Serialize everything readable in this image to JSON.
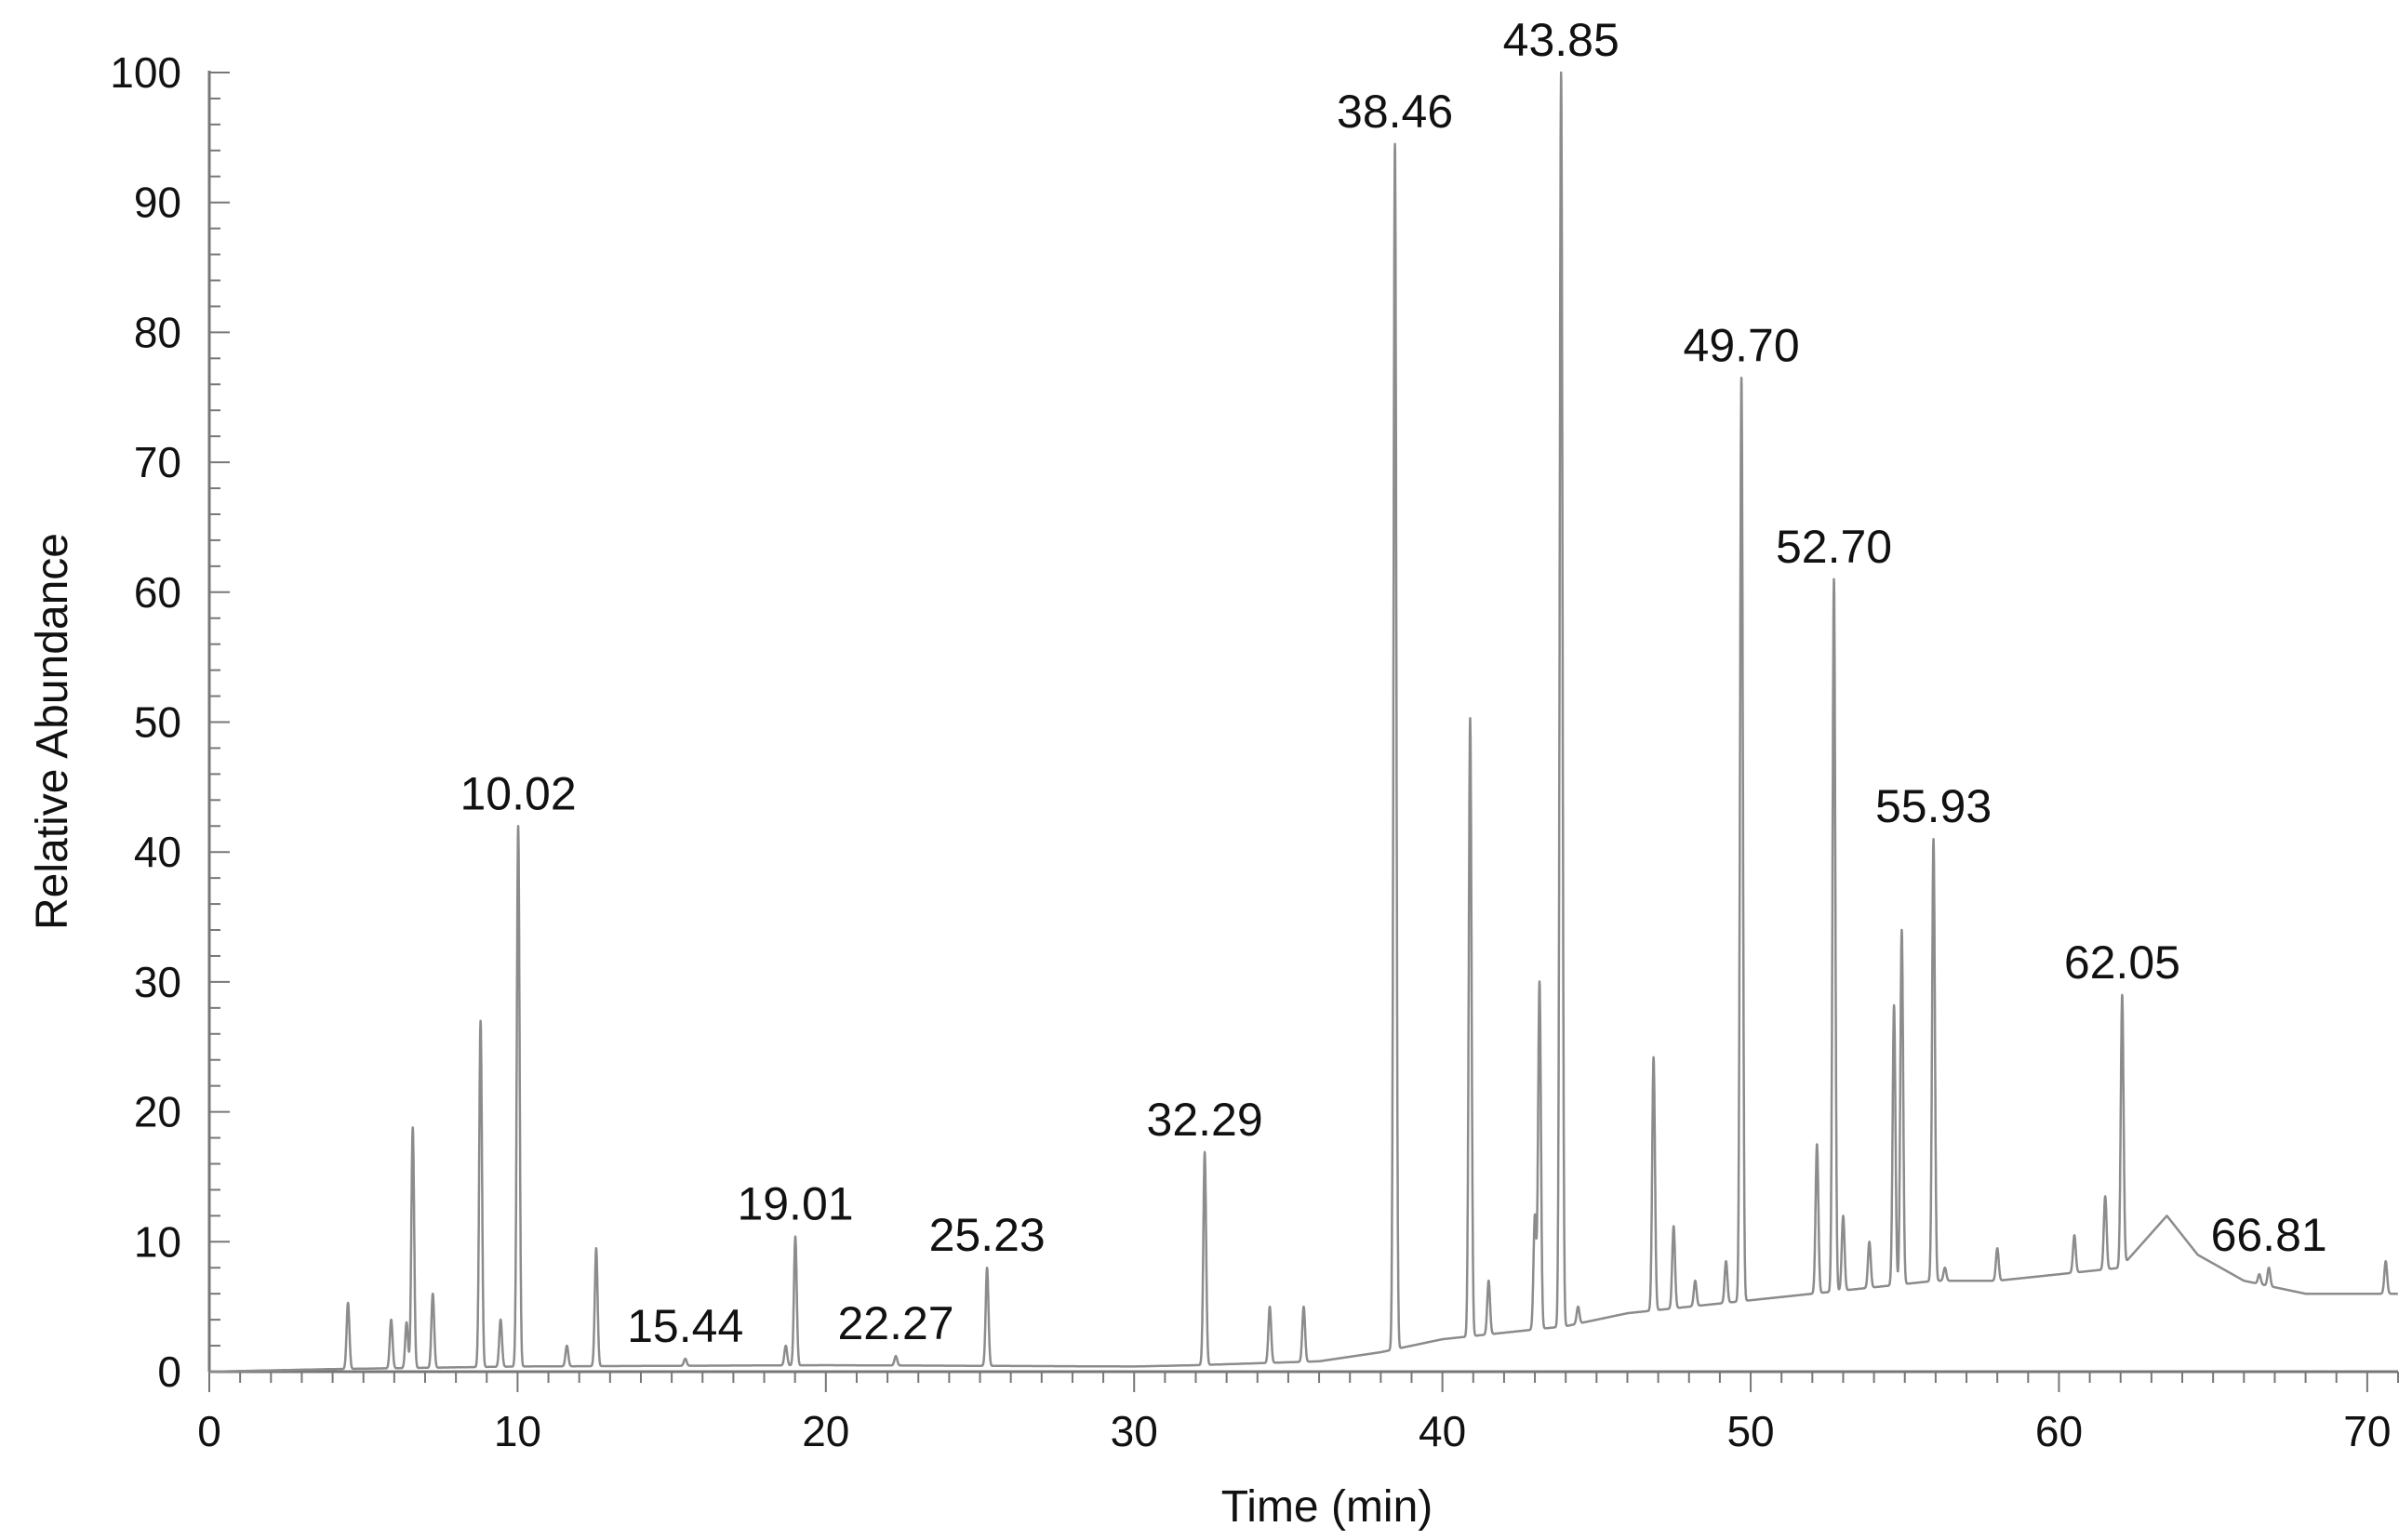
{
  "chart_data": {
    "type": "line",
    "title": "",
    "xlabel": "Time (min)",
    "ylabel": "Relative Abundance",
    "xlim": [
      0,
      71
    ],
    "ylim": [
      0,
      100
    ],
    "x_ticks": [
      0,
      10,
      20,
      30,
      40,
      50,
      60,
      70
    ],
    "y_ticks": [
      0,
      10,
      20,
      30,
      40,
      50,
      60,
      70,
      80,
      90,
      100
    ],
    "grid": false,
    "legend": "none",
    "line_color": "#8c8c8c",
    "baseline": [
      [
        0,
        0
      ],
      [
        4,
        0.2
      ],
      [
        10,
        0.4
      ],
      [
        20,
        0.5
      ],
      [
        30,
        0.4
      ],
      [
        32,
        0.5
      ],
      [
        36,
        0.8
      ],
      [
        38,
        1.5
      ],
      [
        40,
        2.5
      ],
      [
        42,
        3
      ],
      [
        44,
        3.5
      ],
      [
        46,
        4.5
      ],
      [
        48,
        5
      ],
      [
        50,
        5.5
      ],
      [
        52,
        6
      ],
      [
        54,
        6.5
      ],
      [
        56,
        7
      ],
      [
        58,
        7
      ],
      [
        60,
        7.5
      ],
      [
        62,
        8
      ],
      [
        63.5,
        12
      ],
      [
        64.5,
        9
      ],
      [
        66,
        7
      ],
      [
        68,
        6
      ],
      [
        70,
        6
      ],
      [
        71,
        6
      ]
    ],
    "peaks": [
      {
        "x": 4.5,
        "y": 5.3
      },
      {
        "x": 5.9,
        "y": 4
      },
      {
        "x": 6.4,
        "y": 3.8
      },
      {
        "x": 6.6,
        "y": 18.8
      },
      {
        "x": 7.25,
        "y": 6
      },
      {
        "x": 8.8,
        "y": 27
      },
      {
        "x": 9.45,
        "y": 4
      },
      {
        "x": 10.02,
        "y": 42
      },
      {
        "x": 11.6,
        "y": 2
      },
      {
        "x": 12.55,
        "y": 9.5
      },
      {
        "x": 15.44,
        "y": 1
      },
      {
        "x": 18.7,
        "y": 2
      },
      {
        "x": 19.01,
        "y": 10.4
      },
      {
        "x": 22.27,
        "y": 1.2
      },
      {
        "x": 25.23,
        "y": 8
      },
      {
        "x": 32.29,
        "y": 16.9
      },
      {
        "x": 34.4,
        "y": 5
      },
      {
        "x": 35.5,
        "y": 5
      },
      {
        "x": 38.46,
        "y": 94.5
      },
      {
        "x": 40.9,
        "y": 50.3
      },
      {
        "x": 41.5,
        "y": 7
      },
      {
        "x": 43.0,
        "y": 12
      },
      {
        "x": 43.15,
        "y": 30
      },
      {
        "x": 43.85,
        "y": 100
      },
      {
        "x": 44.4,
        "y": 5
      },
      {
        "x": 46.85,
        "y": 24.2
      },
      {
        "x": 47.5,
        "y": 11.2
      },
      {
        "x": 48.2,
        "y": 7
      },
      {
        "x": 49.2,
        "y": 8.5
      },
      {
        "x": 49.7,
        "y": 76.5
      },
      {
        "x": 52.15,
        "y": 17.5
      },
      {
        "x": 52.7,
        "y": 61
      },
      {
        "x": 53.0,
        "y": 12
      },
      {
        "x": 53.85,
        "y": 10
      },
      {
        "x": 54.65,
        "y": 28.2
      },
      {
        "x": 54.9,
        "y": 34
      },
      {
        "x": 55.93,
        "y": 41
      },
      {
        "x": 56.3,
        "y": 8
      },
      {
        "x": 58.0,
        "y": 9.5
      },
      {
        "x": 60.5,
        "y": 10.5
      },
      {
        "x": 61.5,
        "y": 13.5
      },
      {
        "x": 62.05,
        "y": 29
      },
      {
        "x": 66.5,
        "y": 7.5
      },
      {
        "x": 66.81,
        "y": 8
      },
      {
        "x": 70.6,
        "y": 8.5
      }
    ],
    "annotations": [
      {
        "text": "10.02",
        "x": 10.02,
        "y": 42
      },
      {
        "text": "15.44",
        "x": 15.44,
        "y": 1
      },
      {
        "text": "19.01",
        "x": 19.01,
        "y": 10.4
      },
      {
        "text": "22.27",
        "x": 22.27,
        "y": 1.2
      },
      {
        "text": "25.23",
        "x": 25.23,
        "y": 8
      },
      {
        "text": "32.29",
        "x": 32.29,
        "y": 16.9
      },
      {
        "text": "38.46",
        "x": 38.46,
        "y": 94.5
      },
      {
        "text": "43.85",
        "x": 43.85,
        "y": 100
      },
      {
        "text": "49.70",
        "x": 49.7,
        "y": 76.5
      },
      {
        "text": "52.70",
        "x": 52.7,
        "y": 61
      },
      {
        "text": "55.93",
        "x": 55.93,
        "y": 41
      },
      {
        "text": "62.05",
        "x": 62.05,
        "y": 29
      },
      {
        "text": "66.81",
        "x": 66.81,
        "y": 8
      }
    ]
  }
}
